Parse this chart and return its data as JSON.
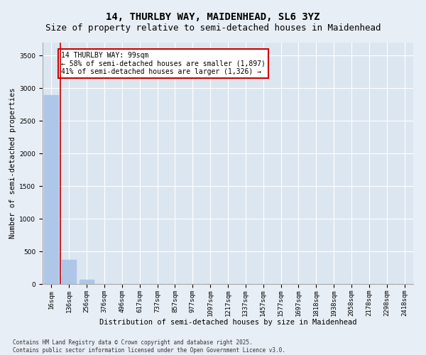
{
  "title_line1": "14, THURLBY WAY, MAIDENHEAD, SL6 3YZ",
  "title_line2": "Size of property relative to semi-detached houses in Maidenhead",
  "xlabel": "Distribution of semi-detached houses by size in Maidenhead",
  "ylabel": "Number of semi-detached properties",
  "footnote": "Contains HM Land Registry data © Crown copyright and database right 2025.\nContains public sector information licensed under the Open Government Licence v3.0.",
  "bar_labels": [
    "16sqm",
    "136sqm",
    "256sqm",
    "376sqm",
    "496sqm",
    "617sqm",
    "737sqm",
    "857sqm",
    "977sqm",
    "1097sqm",
    "1217sqm",
    "1337sqm",
    "1457sqm",
    "1577sqm",
    "1697sqm",
    "1818sqm",
    "1938sqm",
    "2058sqm",
    "2178sqm",
    "2298sqm",
    "2418sqm"
  ],
  "bar_values": [
    2900,
    370,
    60,
    5,
    2,
    1,
    0,
    0,
    0,
    0,
    0,
    0,
    0,
    0,
    0,
    0,
    0,
    0,
    0,
    0,
    0
  ],
  "bar_color": "#aec6e8",
  "bar_edge_color": "#aec6e8",
  "vline_x": 0.5,
  "vline_color": "#cc0000",
  "annotation_text": "14 THURLBY WAY: 99sqm\n← 58% of semi-detached houses are smaller (1,897)\n41% of semi-detached houses are larger (1,326) →",
  "ylim": [
    0,
    3700
  ],
  "yticks": [
    0,
    500,
    1000,
    1500,
    2000,
    2500,
    3000,
    3500
  ],
  "bg_color": "#e8eef5",
  "plot_bg_color": "#dce6f0",
  "grid_color": "#ffffff",
  "title_fontsize": 10,
  "subtitle_fontsize": 9,
  "axis_label_fontsize": 7.5,
  "tick_fontsize": 6.5,
  "footnote_fontsize": 5.5
}
